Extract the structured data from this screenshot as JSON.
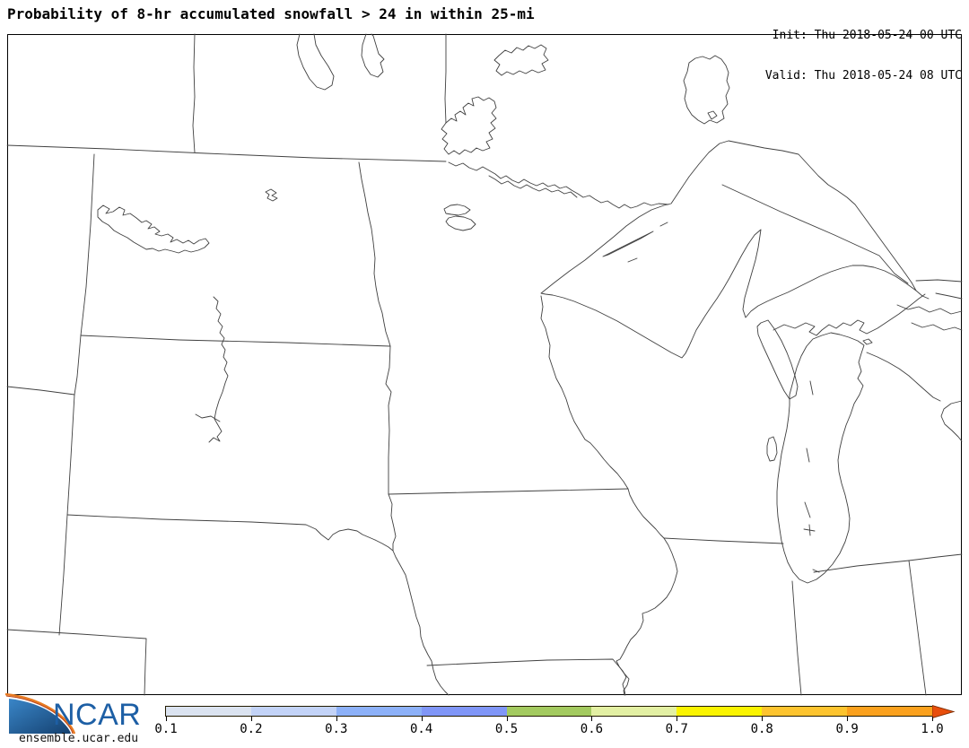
{
  "header": {
    "title": "Probability of 8-hr accumulated snowfall > 24 in within 25-mi",
    "init_line": "Init: Thu 2018-05-24 00 UTC",
    "valid_line": "Valid: Thu 2018-05-24 08 UTC"
  },
  "footer": {
    "logo_text": "NCAR",
    "site_url": "ensemble.ucar.edu",
    "logo_blue": "#1d5fa5",
    "logo_orange": "#e87b22"
  },
  "colorbar": {
    "tick_labels": [
      "0.1",
      "0.2",
      "0.3",
      "0.4",
      "0.5",
      "0.6",
      "0.7",
      "0.8",
      "0.9",
      "1.0"
    ],
    "segment_colors": [
      "#dbe3f0",
      "#c3d3f7",
      "#8db1f8",
      "#8096f7",
      "#a3ca5f",
      "#e3f0a3",
      "#fbf400",
      "#fdc42e",
      "#fba11d"
    ],
    "arrow_color": "#e84e0c",
    "arrow_outline": "#7a2a00",
    "range_min": 0.1,
    "range_max": 1.0
  }
}
